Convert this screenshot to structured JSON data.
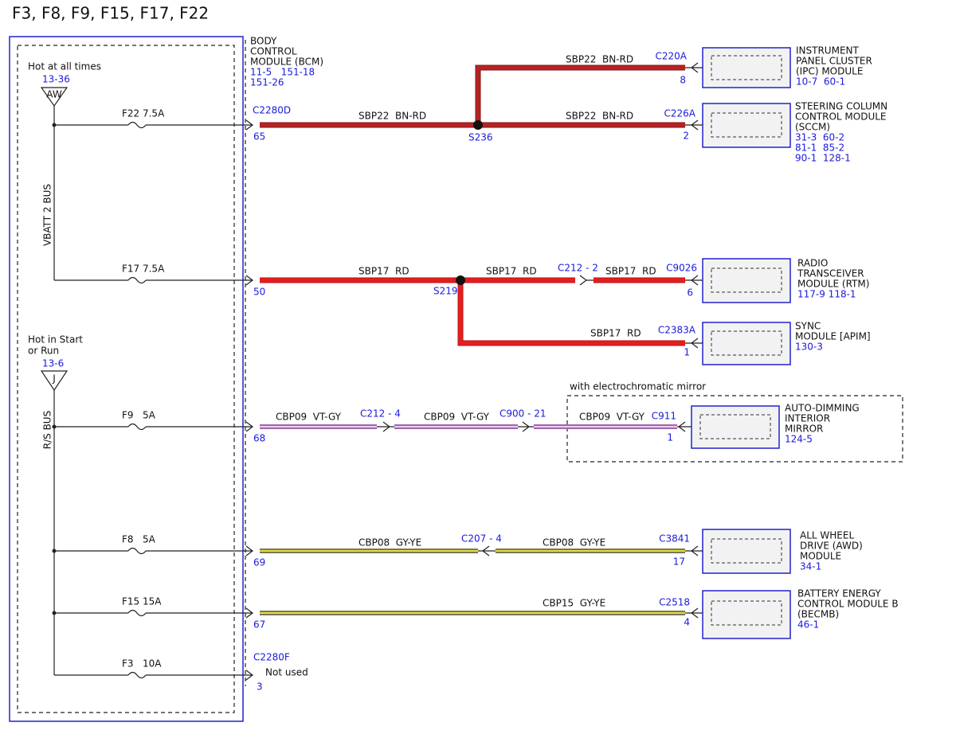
{
  "title": "F3, F8, F9, F15, F17, F22",
  "bcm": {
    "label": [
      "BODY",
      "CONTROL",
      "MODULE (BCM)"
    ],
    "refs": [
      "11-5   151-18",
      "151-26"
    ],
    "connectors": [
      "C2280D",
      "C2280F"
    ],
    "not_used": "Not used"
  },
  "buses": [
    {
      "heading": [
        "Hot at all times"
      ],
      "ref": "13-36",
      "symbol": "AW",
      "name": "VBATT 2 BUS"
    },
    {
      "heading": [
        "Hot in Start",
        "or Run"
      ],
      "ref": "13-6",
      "symbol": "J",
      "name": "R/S BUS"
    }
  ],
  "fuses": [
    {
      "label": "F22 7.5A",
      "pin": "65"
    },
    {
      "label": "F17 7.5A",
      "pin": "50"
    },
    {
      "label": "F9   5A",
      "pin": "68"
    },
    {
      "label": "F8   5A",
      "pin": "69"
    },
    {
      "label": "F15 15A",
      "pin": "67"
    },
    {
      "label": "F3   10A",
      "pin": "3"
    }
  ],
  "wires": [
    "SBP22  BN-RD",
    "SBP22  BN-RD",
    "SBP22  BN-RD",
    "SBP17  RD",
    "SBP17  RD",
    "SBP17  RD",
    "SBP17  RD",
    "CBP09  VT-GY",
    "CBP09  VT-GY",
    "CBP09  VT-GY",
    "CBP08  GY-YE",
    "CBP08  GY-YE",
    "CBP15  GY-YE"
  ],
  "splices": [
    "S236",
    "S219"
  ],
  "inline_connectors": [
    "C212 - 2",
    "C212 - 4",
    "C900 - 21",
    "C207 - 4"
  ],
  "option_note": "with electrochromatic mirror",
  "modules": [
    {
      "lines": [
        "INSTRUMENT",
        "PANEL CLUSTER",
        "(IPC) MODULE"
      ],
      "refs": [
        "10-7  60-1"
      ],
      "connector": "C220A",
      "pin": "8"
    },
    {
      "lines": [
        "STEERING COLUMN",
        "CONTROL MODULE",
        "(SCCM)"
      ],
      "refs": [
        "31-3  60-2",
        "81-1  85-2",
        "90-1  128-1"
      ],
      "connector": "C226A",
      "pin": "2"
    },
    {
      "lines": [
        "RADIO",
        "TRANSCEIVER",
        "MODULE (RTM)"
      ],
      "refs": [
        "117-9 118-1"
      ],
      "connector": "C9026",
      "pin": "6"
    },
    {
      "lines": [
        "SYNC",
        "MODULE [APIM]"
      ],
      "refs": [
        "130-3"
      ],
      "connector": "C2383A",
      "pin": "1"
    },
    {
      "lines": [
        "AUTO-DIMMING",
        "INTERIOR",
        "MIRROR"
      ],
      "refs": [
        "124-5"
      ],
      "connector": "C911",
      "pin": "1"
    },
    {
      "lines": [
        "ALL WHEEL",
        "DRIVE (AWD)",
        "MODULE"
      ],
      "refs": [
        "34-1"
      ],
      "connector": "C3841",
      "pin": "17"
    },
    {
      "lines": [
        "BATTERY ENERGY",
        "CONTROL MODULE B",
        "(BECMB)"
      ],
      "refs": [
        "46-1"
      ],
      "connector": "C2518",
      "pin": "4"
    }
  ]
}
